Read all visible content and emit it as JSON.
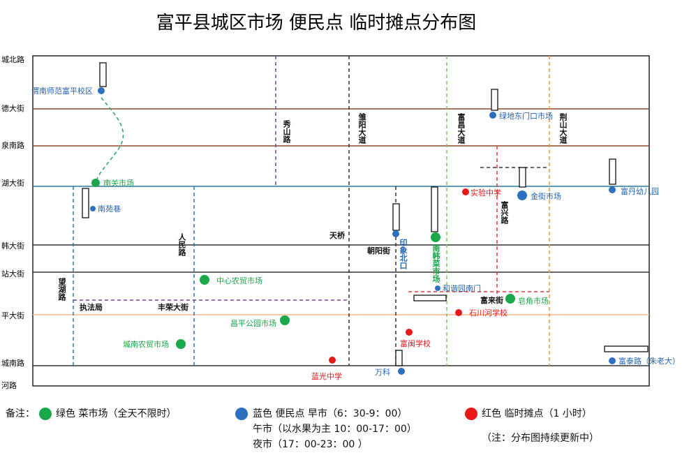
{
  "title": "富平县城区市场 便民点 临时摊点分布图",
  "streets": [
    "城北路",
    "德大街",
    "泉南路",
    "湖大街",
    "韩大街",
    "站大街",
    "平大街",
    "城南路",
    "河路"
  ],
  "roads": [
    "秀山路",
    "雏阳大道",
    "富昌大道",
    "荆山大道",
    "人民路",
    "望湖路",
    "富兴路",
    "天桥",
    "朝阳街",
    "丰荣大街",
    "执法局",
    "富来街"
  ],
  "blue_points": [
    "渭南师范富平校区",
    "绿地东门口市场",
    "金街市场",
    "富丹幼儿园",
    "南苑巷",
    "印象北口",
    "和谐园南门",
    "万科",
    "富泰路（朱老大）"
  ],
  "green_points": [
    "南关市场",
    "南韩菜市场",
    "中心农贸市场",
    "皂角市场",
    "昌平公园市场",
    "城南农贸市场"
  ],
  "red_points": [
    "实验中学",
    "石川河学校",
    "富闽学校",
    "蓝光中学"
  ],
  "legend": {
    "note": "备注：",
    "green": "绿色  菜市场（全天不限时）",
    "blue": "蓝色  便民点  早市（6：30-9：00）",
    "noon": "午市（以水果为主 10：00-17：00）",
    "night": "夜市（17：00-23：00 ）",
    "red": "红色  临时摊点（1 小时）",
    "update": "（注：分布图持续更新中）"
  }
}
